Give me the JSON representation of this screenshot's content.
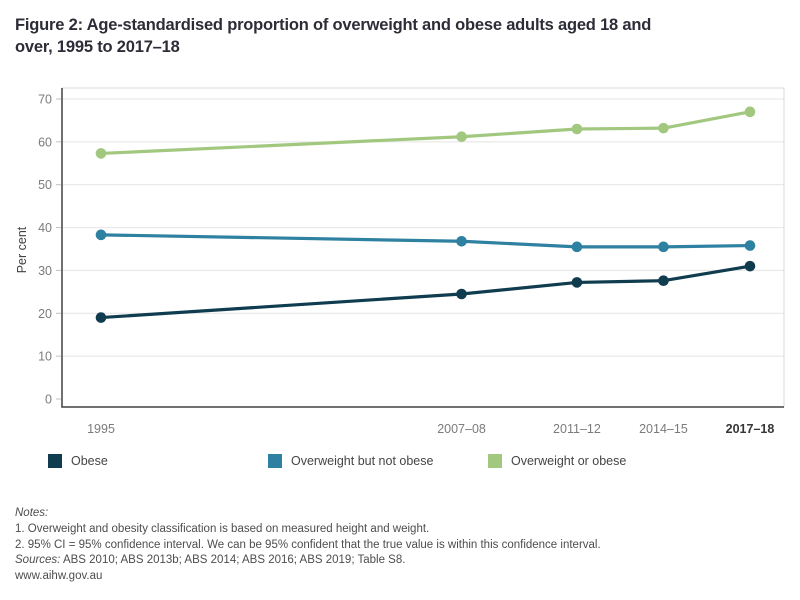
{
  "page": {
    "title_lines": [
      "Figure 2: Age-standardised proportion of overweight and obese adults aged 18 and",
      "over, 1995 to 2017–18"
    ]
  },
  "chart_data": {
    "type": "line",
    "title": "Figure 2: Age-standardised proportion of overweight and obese adults aged 18 and over, 1995 to 2017–18",
    "xlabel": "",
    "ylabel": "Per cent",
    "ylim": [
      0,
      70
    ],
    "yticks": [
      0,
      10,
      20,
      30,
      40,
      50,
      60,
      70
    ],
    "grid": true,
    "legend_position": "bottom",
    "categories": [
      "1995",
      "2007–08",
      "2011–12",
      "2014–15",
      "2017–18"
    ],
    "x_years": [
      1995,
      2007.5,
      2011.5,
      2014.5,
      2017.5
    ],
    "series": [
      {
        "name": "Overweight or obese",
        "color": "#a2c880",
        "values": [
          57.3,
          61.2,
          63.0,
          63.2,
          67.0
        ]
      },
      {
        "name": "Overweight but not obese",
        "color": "#2e81a0",
        "values": [
          38.3,
          36.8,
          35.5,
          35.5,
          35.8
        ]
      },
      {
        "name": "Obese",
        "color": "#103c4f",
        "values": [
          19.0,
          24.5,
          27.2,
          27.6,
          31.0
        ]
      }
    ],
    "highlight_last_x_label": true
  },
  "legend": {
    "items": [
      {
        "label": "Obese",
        "color": "#103c4f"
      },
      {
        "label": "Overweight but not obese",
        "color": "#2e81a0"
      },
      {
        "label": "Overweight or obese",
        "color": "#a2c880"
      }
    ]
  },
  "notes": {
    "label": "Notes:",
    "items": [
      "1. Overweight and obesity classification is based on measured height and weight.",
      "2. 95% CI = 95% confidence interval. We can be 95% confident that the true value is within this confidence interval."
    ],
    "sources_label": "Sources:",
    "sources_text": " ABS 2010; ABS 2013b; ABS 2014; ABS 2016; ABS 2019; Table S8.",
    "website": "www.aihw.gov.au"
  },
  "colors": {
    "axis": "#414141",
    "gridline": "#e4e4e4",
    "tick": "#bfbfbf",
    "tick_label": "#7b7b7b",
    "x_label_highlight": "#363636",
    "frame": "#d8d8d8"
  }
}
